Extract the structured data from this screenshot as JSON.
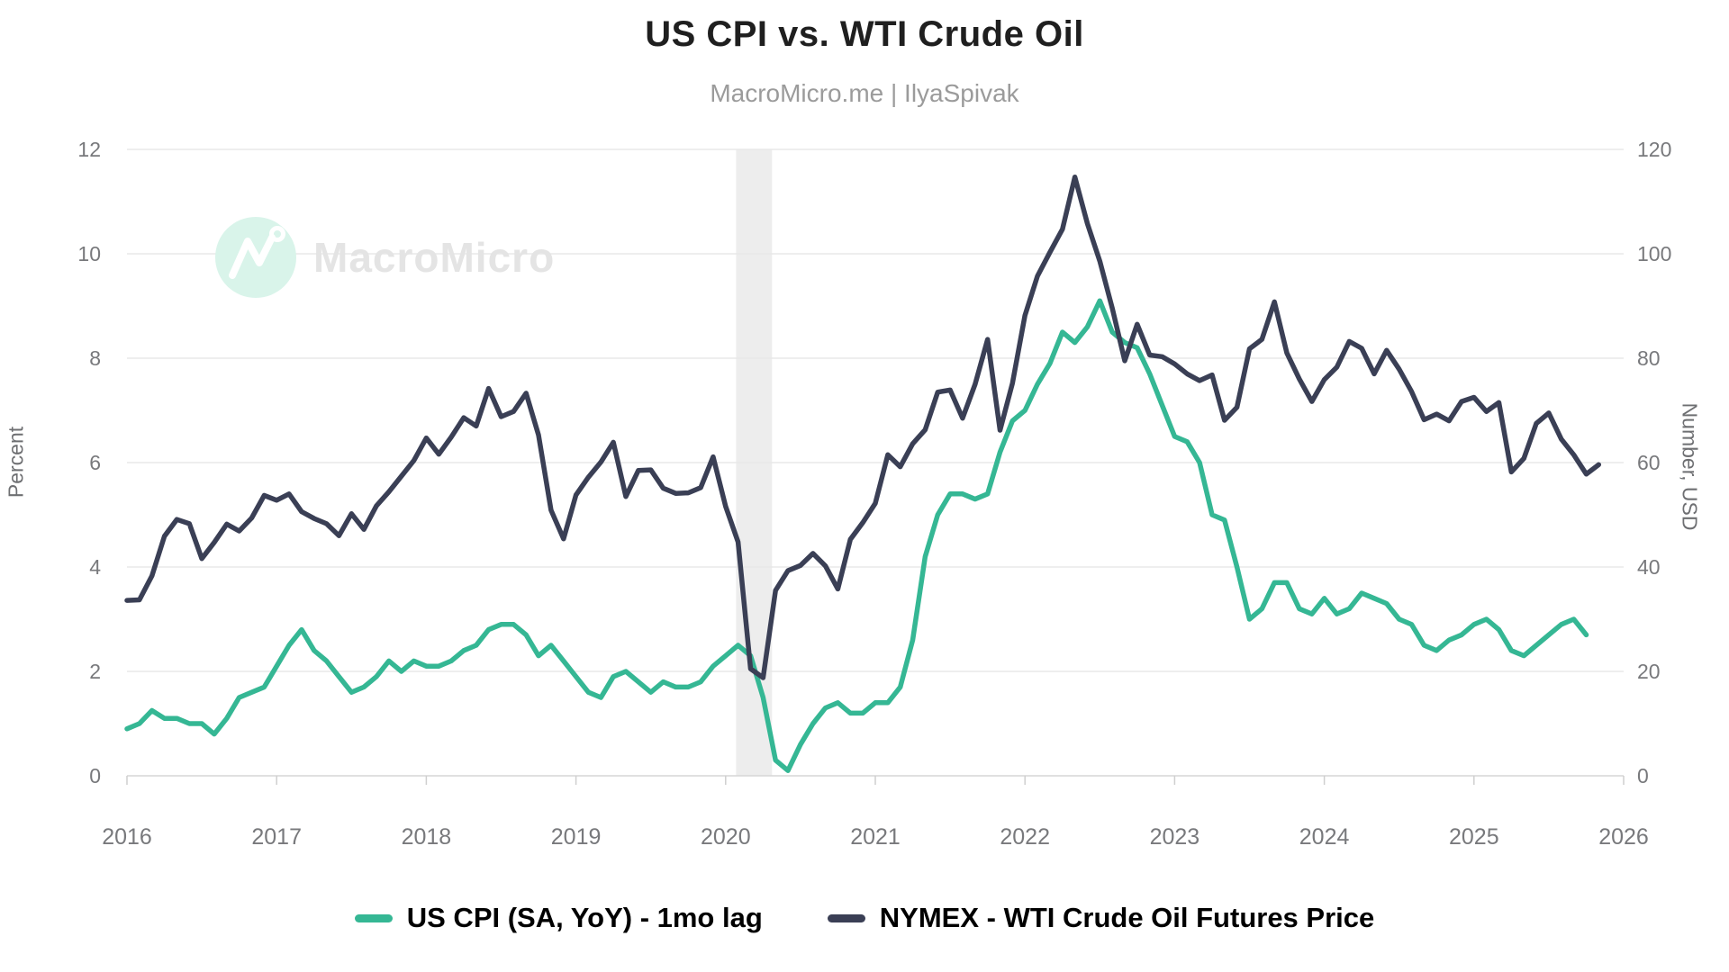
{
  "header": {
    "title": "US CPI vs. WTI Crude Oil",
    "subtitle": "MacroMicro.me | IlyaSpivak"
  },
  "watermark": {
    "brand": "MacroMicro"
  },
  "axes": {
    "left": {
      "title": "Percent"
    },
    "right": {
      "title": "Number, USD"
    }
  },
  "legend": {
    "items": [
      {
        "label": "US CPI (SA, YoY) - 1mo lag",
        "color": "#35b794"
      },
      {
        "label": "NYMEX - WTI Crude Oil Futures Price",
        "color": "#3a3f55"
      }
    ]
  },
  "colors": {
    "grid": "#e8e8e8",
    "axis_line": "#d6d6d6",
    "tick": "#cfcfcf",
    "tick_label": "#78797c",
    "recession_band": "#ededed",
    "watermark_circle": "#d9f4ea",
    "watermark_text": "#e4e4e4"
  },
  "chart_data": {
    "type": "line",
    "title": "US CPI vs. WTI Crude Oil",
    "subtitle": "MacroMicro.me | IlyaSpivak",
    "x_start": "2016-01",
    "x_freq": "monthly",
    "grid": true,
    "legend_position": "bottom",
    "x_axis": {
      "range_years": [
        2016,
        2026
      ],
      "tick_years": [
        2016,
        2017,
        2018,
        2019,
        2020,
        2021,
        2022,
        2023,
        2024,
        2025,
        2026
      ]
    },
    "y_left": {
      "label": "Percent",
      "range": [
        0,
        12
      ],
      "ticks": [
        0,
        2,
        4,
        6,
        8,
        10,
        12
      ]
    },
    "y_right": {
      "label": "Number, USD",
      "range": [
        0,
        120
      ],
      "ticks": [
        0,
        20,
        40,
        60,
        80,
        100,
        120
      ]
    },
    "recession_band_years": [
      2020.07,
      2020.31
    ],
    "series": [
      {
        "name": "US CPI (SA, YoY) - 1mo lag",
        "axis": "left",
        "unit": "%",
        "color": "#35b794",
        "values": [
          0.9,
          1.0,
          1.25,
          1.1,
          1.1,
          1.0,
          1.0,
          0.8,
          1.1,
          1.5,
          1.6,
          1.7,
          2.1,
          2.5,
          2.8,
          2.4,
          2.2,
          1.9,
          1.6,
          1.7,
          1.9,
          2.2,
          2.0,
          2.2,
          2.1,
          2.1,
          2.2,
          2.4,
          2.5,
          2.8,
          2.9,
          2.9,
          2.7,
          2.3,
          2.5,
          2.2,
          1.9,
          1.6,
          1.5,
          1.9,
          2.0,
          1.8,
          1.6,
          1.8,
          1.7,
          1.7,
          1.8,
          2.1,
          2.3,
          2.5,
          2.3,
          1.5,
          0.3,
          0.1,
          0.6,
          1.0,
          1.3,
          1.4,
          1.2,
          1.2,
          1.4,
          1.4,
          1.7,
          2.6,
          4.2,
          5.0,
          5.4,
          5.4,
          5.3,
          5.4,
          6.2,
          6.8,
          7.0,
          7.5,
          7.9,
          8.5,
          8.3,
          8.6,
          9.1,
          8.5,
          8.3,
          8.2,
          7.7,
          7.1,
          6.5,
          6.4,
          6.0,
          5.0,
          4.9,
          4.0,
          3.0,
          3.2,
          3.7,
          3.7,
          3.2,
          3.1,
          3.4,
          3.1,
          3.2,
          3.5,
          3.4,
          3.3,
          3.0,
          2.9,
          2.5,
          2.4,
          2.6,
          2.7,
          2.9,
          3.0,
          2.8,
          2.4,
          2.3,
          2.5,
          2.7,
          2.9,
          3.0,
          2.7
        ]
      },
      {
        "name": "NYMEX - WTI Crude Oil Futures Price",
        "axis": "right",
        "unit": "USD",
        "color": "#3a3f55",
        "values": [
          33.6,
          33.7,
          38.3,
          45.9,
          49.1,
          48.3,
          41.6,
          44.7,
          48.2,
          46.9,
          49.4,
          53.7,
          52.8,
          54.0,
          50.6,
          49.3,
          48.3,
          46.0,
          50.2,
          47.2,
          51.7,
          54.4,
          57.4,
          60.4,
          64.7,
          61.6,
          64.9,
          68.6,
          67.0,
          74.2,
          68.8,
          69.8,
          73.3,
          65.3,
          50.9,
          45.4,
          53.8,
          57.2,
          60.1,
          63.9,
          53.5,
          58.5,
          58.6,
          55.1,
          54.1,
          54.2,
          55.2,
          61.1,
          51.6,
          44.8,
          20.5,
          18.8,
          35.5,
          39.3,
          40.3,
          42.6,
          40.2,
          35.8,
          45.3,
          48.5,
          52.2,
          61.5,
          59.2,
          63.6,
          66.3,
          73.5,
          73.9,
          68.5,
          75.0,
          83.6,
          66.2,
          75.2,
          88.2,
          95.7,
          100.3,
          104.7,
          114.7,
          105.8,
          98.6,
          89.6,
          79.5,
          86.5,
          80.6,
          80.3,
          78.9,
          77.0,
          75.7,
          76.8,
          68.1,
          70.6,
          81.8,
          83.6,
          90.8,
          81.0,
          76.0,
          71.7,
          75.9,
          78.3,
          83.2,
          81.9,
          77.0,
          81.5,
          77.9,
          73.6,
          68.2,
          69.3,
          68.0,
          71.7,
          72.5,
          69.8,
          71.5,
          58.2,
          60.8,
          67.5,
          69.5,
          64.5,
          61.5,
          57.8,
          59.6
        ]
      }
    ]
  }
}
